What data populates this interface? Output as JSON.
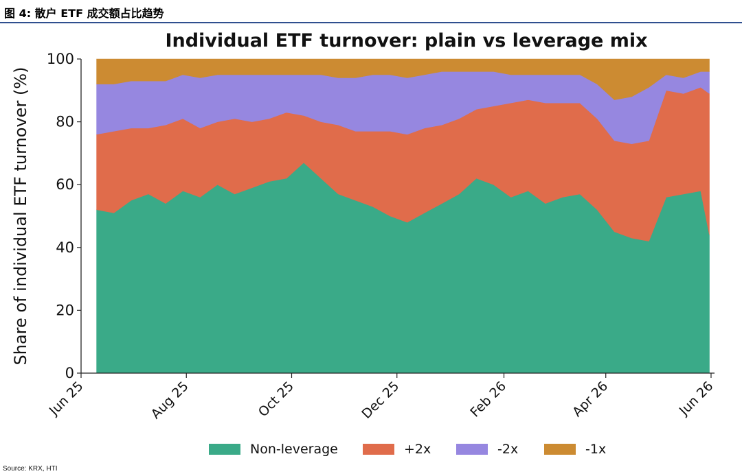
{
  "figure": {
    "caption": "图 4:  散户 ETF 成交额占比趋势",
    "source": "Source: KRX, HTI"
  },
  "chart_data": {
    "type": "area",
    "stacked": true,
    "title": "Individual ETF turnover: plain vs leverage mix",
    "xlabel": "",
    "ylabel": "Share of individual ETF turnover (%)",
    "ylim": [
      0,
      100
    ],
    "yticks": [
      0,
      20,
      40,
      60,
      80,
      100
    ],
    "xlim": [
      "2025-06-01",
      "2026-06-03"
    ],
    "xticks": [
      {
        "date": "2025-06-01",
        "label": "Jun 25"
      },
      {
        "date": "2025-08-01",
        "label": "Aug 25"
      },
      {
        "date": "2025-10-01",
        "label": "Oct 25"
      },
      {
        "date": "2025-12-01",
        "label": "Dec 25"
      },
      {
        "date": "2026-02-01",
        "label": "Feb 26"
      },
      {
        "date": "2026-04-01",
        "label": "Apr 26"
      },
      {
        "date": "2026-06-01",
        "label": "Jun 26"
      }
    ],
    "grid": false,
    "legend_position": "bottom",
    "x": [
      "2025-06-10",
      "2025-06-20",
      "2025-06-30",
      "2025-07-10",
      "2025-07-20",
      "2025-07-30",
      "2025-08-09",
      "2025-08-19",
      "2025-08-29",
      "2025-09-08",
      "2025-09-18",
      "2025-09-28",
      "2025-10-08",
      "2025-10-18",
      "2025-10-28",
      "2025-11-07",
      "2025-11-17",
      "2025-11-27",
      "2025-12-07",
      "2025-12-17",
      "2025-12-27",
      "2026-01-06",
      "2026-01-16",
      "2026-01-26",
      "2026-02-05",
      "2026-02-15",
      "2026-02-25",
      "2026-03-07",
      "2026-03-17",
      "2026-03-27",
      "2026-04-06",
      "2026-04-16",
      "2026-04-26",
      "2026-05-06",
      "2026-05-16",
      "2026-05-26",
      "2026-05-31"
    ],
    "series": [
      {
        "name": "Non-leverage",
        "color": "#3aaa88",
        "values": [
          52,
          51,
          55,
          57,
          54,
          58,
          56,
          60,
          57,
          59,
          61,
          62,
          67,
          62,
          57,
          55,
          53,
          50,
          48,
          51,
          54,
          57,
          62,
          60,
          56,
          58,
          54,
          56,
          57,
          52,
          45,
          43,
          42,
          56,
          57,
          58,
          44
        ]
      },
      {
        "name": "+2x",
        "color": "#e06c4b",
        "values": [
          24,
          26,
          23,
          21,
          25,
          23,
          22,
          20,
          24,
          21,
          20,
          21,
          15,
          18,
          22,
          22,
          24,
          27,
          28,
          27,
          25,
          24,
          22,
          25,
          30,
          29,
          32,
          30,
          29,
          29,
          29,
          30,
          32,
          34,
          32,
          33,
          45
        ]
      },
      {
        "name": "-2x",
        "color": "#9687e0",
        "values": [
          16,
          15,
          15,
          15,
          14,
          14,
          16,
          15,
          14,
          15,
          14,
          12,
          13,
          15,
          15,
          17,
          18,
          18,
          18,
          17,
          17,
          15,
          12,
          11,
          9,
          8,
          9,
          9,
          9,
          11,
          13,
          15,
          17,
          5,
          5,
          5,
          7
        ]
      },
      {
        "name": "-1x",
        "color": "#cc8b32",
        "values": [
          8,
          8,
          7,
          7,
          7,
          5,
          6,
          5,
          5,
          5,
          5,
          5,
          5,
          5,
          6,
          6,
          5,
          5,
          6,
          5,
          4,
          4,
          4,
          4,
          5,
          5,
          5,
          5,
          5,
          8,
          13,
          12,
          9,
          5,
          6,
          4,
          4
        ]
      }
    ]
  }
}
